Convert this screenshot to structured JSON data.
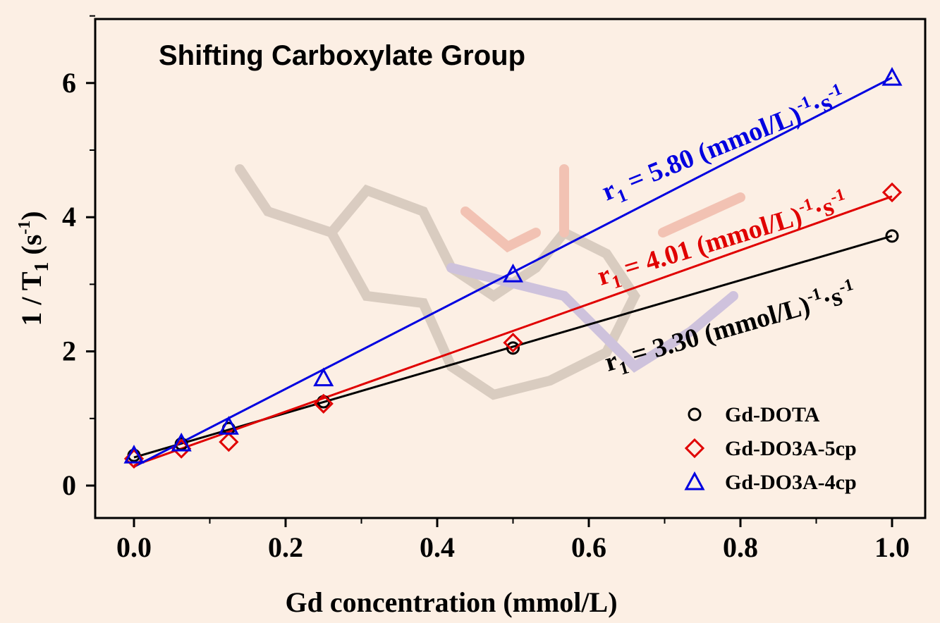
{
  "chart_data": {
    "type": "scatter",
    "title": "Shifting Carboxylate Group",
    "xlabel": "Gd concentration (mmol/L)",
    "ylabel": {
      "main": "1 / T",
      "sub": "1",
      "unit_open": " (s",
      "unit_sup": "-1",
      "unit_close": ")"
    },
    "xlim": [
      -0.05,
      1.05
    ],
    "ylim": [
      -0.5,
      7.0
    ],
    "xticks": [
      0.0,
      0.2,
      0.4,
      0.6,
      0.8,
      1.0
    ],
    "xtick_labels": [
      "0.0",
      "0.2",
      "0.4",
      "0.6",
      "0.8",
      "1.0"
    ],
    "yticks": [
      0,
      2,
      4,
      6
    ],
    "ytick_labels": [
      "0",
      "2",
      "4",
      "6"
    ],
    "legend_position": "bottom-right",
    "series": [
      {
        "name": "Gd-DOTA",
        "color": "#000000",
        "marker": "circle",
        "x": [
          0,
          0.0625,
          0.125,
          0.25,
          0.5,
          1.0
        ],
        "y": [
          0.45,
          0.62,
          0.85,
          1.25,
          2.05,
          3.72
        ],
        "fit": {
          "slope": 3.3,
          "intercept": 0.42
        },
        "annotation": {
          "r": "r",
          "sub": "1",
          "text": " = 3.30 (mmol/L)",
          "sup1": "-1",
          "mid": "·s",
          "sup2": "-1"
        }
      },
      {
        "name": "Gd-DO3A-5cp",
        "color": "#e00000",
        "marker": "diamond",
        "x": [
          0,
          0.0625,
          0.125,
          0.25,
          0.5,
          1.0
        ],
        "y": [
          0.4,
          0.55,
          0.65,
          1.22,
          2.13,
          4.37
        ],
        "fit": {
          "slope": 4.01,
          "intercept": 0.3
        },
        "annotation": {
          "r": "r",
          "sub": "1",
          "text": " = 4.01 (mmol/L)",
          "sup1": "-1",
          "mid": "·s",
          "sup2": "-1"
        }
      },
      {
        "name": "Gd-DO3A-4cp",
        "color": "#0000e0",
        "marker": "triangle",
        "x": [
          0,
          0.0625,
          0.125,
          0.25,
          0.5,
          1.0
        ],
        "y": [
          0.45,
          0.63,
          0.88,
          1.6,
          3.15,
          6.08
        ],
        "fit": {
          "slope": 5.8,
          "intercept": 0.28
        },
        "annotation": {
          "r": "r",
          "sub": "1",
          "text": " = 5.80 (mmol/L)",
          "sup1": "-1",
          "mid": "·s",
          "sup2": "-1"
        }
      }
    ]
  }
}
